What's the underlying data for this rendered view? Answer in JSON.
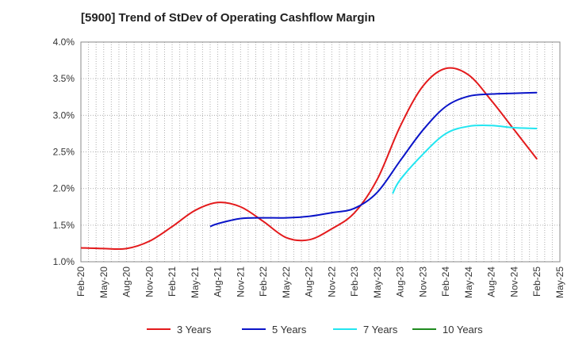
{
  "chart_data": {
    "type": "line",
    "title": "[5900]  Trend of StDev of Operating Cashflow Margin",
    "xlabel": "",
    "ylabel": "",
    "ylim": [
      1.0,
      4.0
    ],
    "y_ticks": [
      "1.0%",
      "1.5%",
      "2.0%",
      "2.5%",
      "3.0%",
      "3.5%",
      "4.0%"
    ],
    "x_ticks": [
      "Feb-20",
      "May-20",
      "Aug-20",
      "Nov-20",
      "Feb-21",
      "May-21",
      "Aug-21",
      "Nov-21",
      "Feb-22",
      "May-22",
      "Aug-22",
      "Nov-22",
      "Feb-23",
      "May-23",
      "Aug-23",
      "Nov-23",
      "Feb-24",
      "May-24",
      "Aug-24",
      "Nov-24",
      "Feb-25",
      "May-25"
    ],
    "grid": true,
    "legend_position": "bottom",
    "series": [
      {
        "name": "3 Years",
        "color": "#e31a1c",
        "points": [
          [
            "Feb-20",
            1.19
          ],
          [
            "May-20",
            1.18
          ],
          [
            "Aug-20",
            1.18
          ],
          [
            "Nov-20",
            1.28
          ],
          [
            "Feb-21",
            1.48
          ],
          [
            "May-21",
            1.7
          ],
          [
            "Aug-21",
            1.81
          ],
          [
            "Nov-21",
            1.75
          ],
          [
            "Feb-22",
            1.55
          ],
          [
            "May-22",
            1.33
          ],
          [
            "Aug-22",
            1.3
          ],
          [
            "Nov-22",
            1.45
          ],
          [
            "Feb-23",
            1.67
          ],
          [
            "May-23",
            2.13
          ],
          [
            "Aug-23",
            2.85
          ],
          [
            "Nov-23",
            3.4
          ],
          [
            "Feb-24",
            3.64
          ],
          [
            "May-24",
            3.55
          ],
          [
            "Aug-24",
            3.2
          ],
          [
            "Nov-24",
            2.8
          ],
          [
            "Feb-25",
            2.4
          ]
        ]
      },
      {
        "name": "5 Years",
        "color": "#0a14c8",
        "points": [
          [
            "Jul-21",
            1.48
          ],
          [
            "Aug-21",
            1.52
          ],
          [
            "Nov-21",
            1.59
          ],
          [
            "Feb-22",
            1.6
          ],
          [
            "May-22",
            1.6
          ],
          [
            "Aug-22",
            1.62
          ],
          [
            "Nov-22",
            1.67
          ],
          [
            "Feb-23",
            1.73
          ],
          [
            "May-23",
            1.95
          ],
          [
            "Aug-23",
            2.38
          ],
          [
            "Nov-23",
            2.8
          ],
          [
            "Feb-24",
            3.12
          ],
          [
            "May-24",
            3.26
          ],
          [
            "Aug-24",
            3.29
          ],
          [
            "Nov-24",
            3.3
          ],
          [
            "Feb-25",
            3.31
          ]
        ]
      },
      {
        "name": "7 Years",
        "color": "#22e5f0",
        "points": [
          [
            "Jul-23",
            1.93
          ],
          [
            "Aug-23",
            2.12
          ],
          [
            "Nov-23",
            2.47
          ],
          [
            "Feb-24",
            2.75
          ],
          [
            "May-24",
            2.85
          ],
          [
            "Aug-24",
            2.86
          ],
          [
            "Nov-24",
            2.83
          ],
          [
            "Feb-25",
            2.82
          ]
        ]
      },
      {
        "name": "10 Years",
        "color": "#1f8a1f",
        "points": []
      }
    ]
  }
}
